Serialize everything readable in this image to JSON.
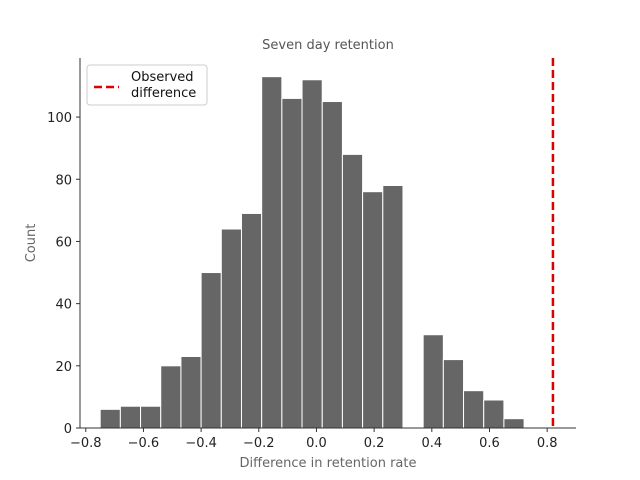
{
  "chart_data": {
    "type": "bar",
    "title": "Seven day retention",
    "xlabel": "Difference in retention rate",
    "ylabel": "Count",
    "xlim": [
      -0.82,
      0.9
    ],
    "ylim": [
      0,
      119
    ],
    "x_ticks": [
      -0.8,
      -0.6,
      -0.4,
      -0.2,
      0.0,
      0.2,
      0.4,
      0.6,
      0.8
    ],
    "x_tick_labels": [
      "−0.8",
      "−0.6",
      "−0.4",
      "−0.2",
      "0.0",
      "0.2",
      "0.4",
      "0.6",
      "0.8"
    ],
    "y_ticks": [
      0,
      20,
      40,
      60,
      80,
      100
    ],
    "y_tick_labels": [
      "0",
      "20",
      "40",
      "60",
      "80",
      "100"
    ],
    "bins": [
      {
        "x0": -0.75,
        "x1": -0.68,
        "count": 6
      },
      {
        "x0": -0.68,
        "x1": -0.61,
        "count": 7
      },
      {
        "x0": -0.61,
        "x1": -0.54,
        "count": 7
      },
      {
        "x0": -0.54,
        "x1": -0.47,
        "count": 20
      },
      {
        "x0": -0.47,
        "x1": -0.4,
        "count": 23
      },
      {
        "x0": -0.4,
        "x1": -0.33,
        "count": 50
      },
      {
        "x0": -0.33,
        "x1": -0.26,
        "count": 64
      },
      {
        "x0": -0.26,
        "x1": -0.19,
        "count": 69
      },
      {
        "x0": -0.19,
        "x1": -0.12,
        "count": 113
      },
      {
        "x0": -0.12,
        "x1": -0.05,
        "count": 106
      },
      {
        "x0": -0.05,
        "x1": 0.02,
        "count": 112
      },
      {
        "x0": 0.02,
        "x1": 0.09,
        "count": 105
      },
      {
        "x0": 0.09,
        "x1": 0.16,
        "count": 88
      },
      {
        "x0": 0.16,
        "x1": 0.23,
        "count": 76
      },
      {
        "x0": 0.23,
        "x1": 0.3,
        "count": 78
      },
      {
        "x0": 0.3,
        "x1": 0.37,
        "count": 0
      },
      {
        "x0": 0.37,
        "x1": 0.44,
        "count": 30
      },
      {
        "x0": 0.44,
        "x1": 0.51,
        "count": 22
      },
      {
        "x0": 0.51,
        "x1": 0.58,
        "count": 12
      },
      {
        "x0": 0.58,
        "x1": 0.65,
        "count": 9
      },
      {
        "x0": 0.65,
        "x1": 0.72,
        "count": 3
      }
    ],
    "observed_difference": 0.82,
    "legend": {
      "placement": "top-left",
      "entries": [
        "Observed\ndifference"
      ]
    },
    "grid": false,
    "colors": {
      "bars": "#666666",
      "bar_edge": "#ffffff",
      "observed_line": "#dd0000",
      "axis": "#333333"
    }
  }
}
